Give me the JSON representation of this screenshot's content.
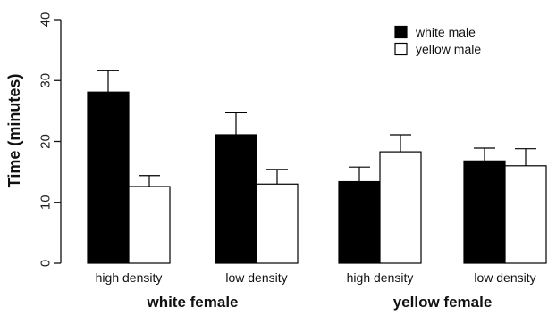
{
  "chart_data": {
    "type": "bar",
    "ylabel": "Time (minutes)",
    "xlabel": "",
    "title": "",
    "ylim": [
      0,
      40
    ],
    "yticks": [
      0,
      10,
      20,
      30,
      40
    ],
    "groups": [
      {
        "label": "white female",
        "categories": [
          "high density",
          "low density"
        ]
      },
      {
        "label": "yellow female",
        "categories": [
          "high density",
          "low density"
        ]
      }
    ],
    "categories": [
      "high density",
      "low density",
      "high density",
      "low density"
    ],
    "series": [
      {
        "name": "white male",
        "color": "#000000",
        "values": [
          28.1,
          21.1,
          13.4,
          16.8
        ],
        "errors": [
          3.5,
          3.6,
          2.4,
          2.1
        ]
      },
      {
        "name": "yellow male",
        "color": "#ffffff",
        "values": [
          12.6,
          13.0,
          18.3,
          16.0
        ],
        "errors": [
          1.8,
          2.4,
          2.8,
          2.8
        ]
      }
    ],
    "legend_position": "top-right",
    "grid": false
  }
}
